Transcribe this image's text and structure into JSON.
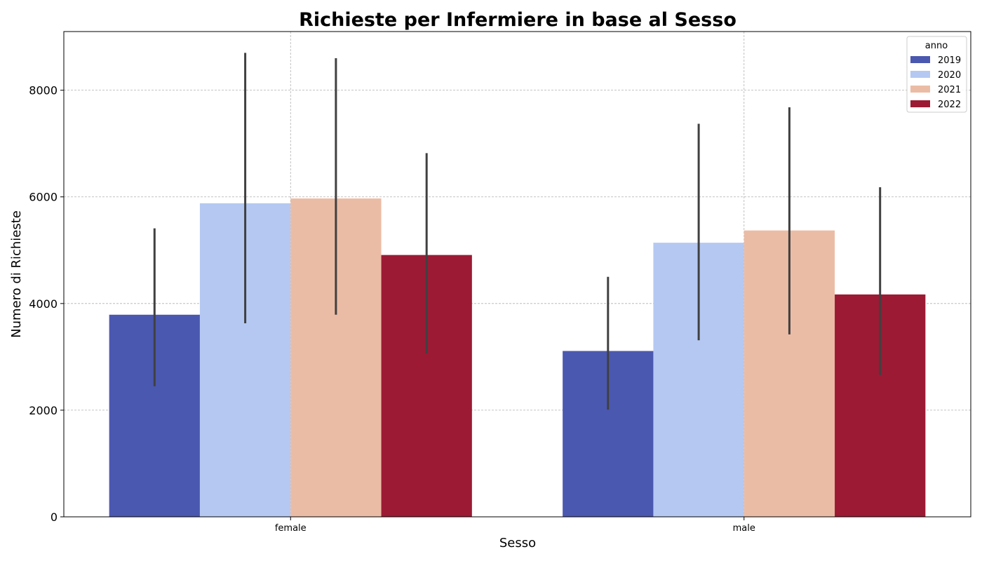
{
  "chart_data": {
    "type": "bar",
    "title": "Richieste per Infermiere in base al Sesso",
    "xlabel": "Sesso",
    "ylabel": "Numero di Richieste",
    "categories": [
      "female",
      "male"
    ],
    "ylim": [
      0,
      9100
    ],
    "yticks": [
      0,
      2000,
      4000,
      6000,
      8000
    ],
    "grid": true,
    "legend": {
      "title": "anno",
      "placement": "top-right"
    },
    "series": [
      {
        "name": "2019",
        "color": "#4b58b0",
        "values": [
          3790,
          3110
        ],
        "error_low": [
          2450,
          2010
        ],
        "error_high": [
          5410,
          4500
        ]
      },
      {
        "name": "2020",
        "color": "#b4c8f2",
        "values": [
          5880,
          5140
        ],
        "error_low": [
          3630,
          3310
        ],
        "error_high": [
          8700,
          7370
        ]
      },
      {
        "name": "2021",
        "color": "#ebbca5",
        "values": [
          5970,
          5370
        ],
        "error_low": [
          3790,
          3420
        ],
        "error_high": [
          8600,
          7680
        ]
      },
      {
        "name": "2022",
        "color": "#9c1a34",
        "values": [
          4910,
          4170
        ],
        "error_low": [
          3060,
          2660
        ],
        "error_high": [
          6820,
          6180
        ]
      }
    ]
  }
}
